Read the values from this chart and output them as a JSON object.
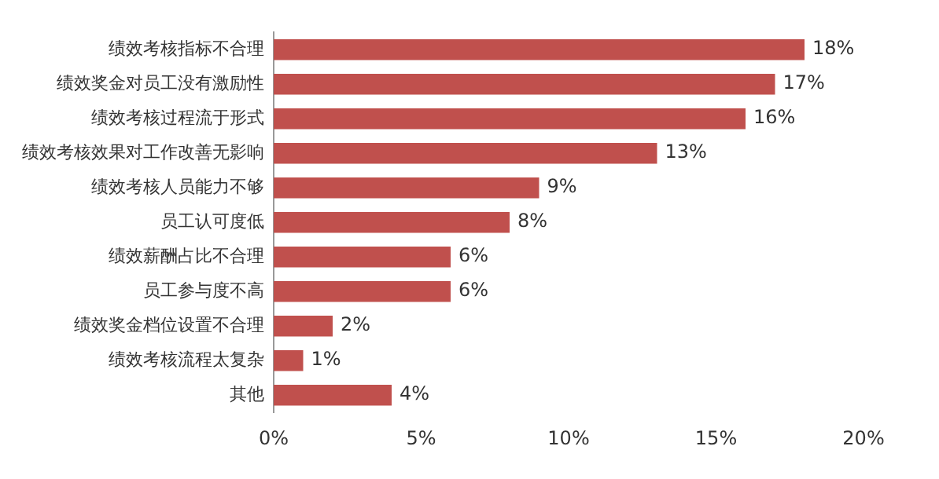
{
  "chart_data": {
    "type": "bar",
    "orientation": "horizontal",
    "categories": [
      "绩效考核指标不合理",
      "绩效奖金对员工没有激励性",
      "绩效考核过程流于形式",
      "绩效考核效果对工作改善无影响",
      "绩效考核人员能力不够",
      "员工认可度低",
      "绩效薪酬占比不合理",
      "员工参与度不高",
      "绩效奖金档位设置不合理",
      "绩效考核流程太复杂",
      "其他"
    ],
    "values": [
      18,
      17,
      16,
      13,
      9,
      8,
      6,
      6,
      2,
      1,
      4
    ],
    "value_labels": [
      "18%",
      "17%",
      "16%",
      "13%",
      "9%",
      "8%",
      "6%",
      "6%",
      "2%",
      "1%",
      "4%"
    ],
    "color": "#c0504d",
    "xlim": [
      0,
      20
    ],
    "xticks": [
      {
        "value": 0,
        "label": "0%"
      },
      {
        "value": 5,
        "label": "5%"
      },
      {
        "value": 10,
        "label": "10%"
      },
      {
        "value": 15,
        "label": "15%"
      },
      {
        "value": 20,
        "label": "20%"
      }
    ],
    "grid": false,
    "legend": false
  }
}
